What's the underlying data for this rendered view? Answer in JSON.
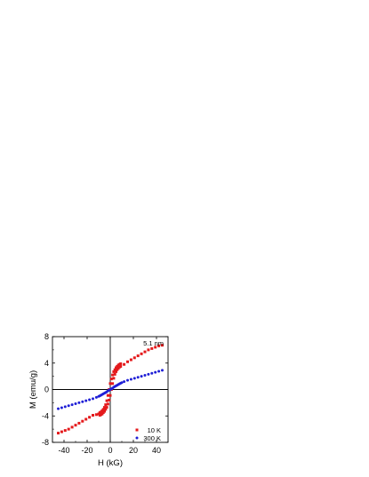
{
  "chart_data": {
    "type": "scatter",
    "xlabel": "H (kG)",
    "ylabel": "M (emu/g)",
    "xlim": [
      -50,
      50
    ],
    "ylim": [
      -8,
      8
    ],
    "xticks": [
      -40,
      -20,
      0,
      20,
      40
    ],
    "yticks": [
      -8,
      -4,
      0,
      4,
      8
    ],
    "xtick_labels": [
      "-40",
      "-20",
      "0",
      "20",
      "40"
    ],
    "ytick_labels": [
      "-8",
      "-4",
      "0",
      "4",
      "8"
    ],
    "annotation": "5.1 nm",
    "legend_position": "bottom-right",
    "zero_lines": true,
    "series": [
      {
        "name": "10 K",
        "color": "#e41a1c",
        "marker": "square",
        "points": [
          [
            -45,
            -6.6
          ],
          [
            -42,
            -6.4
          ],
          [
            -39,
            -6.2
          ],
          [
            -36,
            -6.0
          ],
          [
            -33,
            -5.7
          ],
          [
            -30,
            -5.4
          ],
          [
            -27,
            -5.1
          ],
          [
            -24,
            -4.8
          ],
          [
            -21,
            -4.5
          ],
          [
            -18,
            -4.2
          ],
          [
            -15,
            -3.9
          ],
          [
            -12,
            -3.8
          ],
          [
            -10,
            -3.7
          ],
          [
            -9,
            -3.5
          ],
          [
            -8,
            -3.4
          ],
          [
            -7,
            -3.2
          ],
          [
            -6,
            -3.0
          ],
          [
            -5,
            -2.7
          ],
          [
            -4,
            -2.3
          ],
          [
            -3,
            -1.7
          ],
          [
            -2,
            -0.9
          ],
          [
            -1,
            0.0
          ],
          [
            0,
            0.9
          ],
          [
            1,
            1.6
          ],
          [
            2,
            2.2
          ],
          [
            3,
            2.7
          ],
          [
            4,
            3.0
          ],
          [
            5,
            3.3
          ],
          [
            6,
            3.5
          ],
          [
            7,
            3.7
          ],
          [
            8,
            3.8
          ],
          [
            9,
            3.9
          ],
          [
            9,
            3.5
          ],
          [
            8,
            3.4
          ],
          [
            7,
            3.2
          ],
          [
            6,
            3.0
          ],
          [
            5,
            2.7
          ],
          [
            4,
            2.3
          ],
          [
            3,
            1.7
          ],
          [
            2,
            0.9
          ],
          [
            1,
            0.0
          ],
          [
            0,
            -0.9
          ],
          [
            -1,
            -1.6
          ],
          [
            -2,
            -2.2
          ],
          [
            -3,
            -2.7
          ],
          [
            -4,
            -3.0
          ],
          [
            -5,
            -3.3
          ],
          [
            -6,
            -3.5
          ],
          [
            -7,
            -3.7
          ],
          [
            -8,
            -3.8
          ],
          [
            -9,
            -3.9
          ],
          [
            12,
            3.8
          ],
          [
            15,
            4.2
          ],
          [
            18,
            4.5
          ],
          [
            21,
            4.8
          ],
          [
            24,
            5.1
          ],
          [
            27,
            5.4
          ],
          [
            30,
            5.7
          ],
          [
            33,
            6.0
          ],
          [
            36,
            6.2
          ],
          [
            39,
            6.4
          ],
          [
            42,
            6.6
          ],
          [
            45,
            6.7
          ]
        ]
      },
      {
        "name": "300 K",
        "color": "#1f1fd6",
        "marker": "circle",
        "points": [
          [
            -45,
            -2.9
          ],
          [
            -42,
            -2.75
          ],
          [
            -39,
            -2.6
          ],
          [
            -36,
            -2.45
          ],
          [
            -33,
            -2.3
          ],
          [
            -30,
            -2.15
          ],
          [
            -27,
            -2.0
          ],
          [
            -24,
            -1.85
          ],
          [
            -21,
            -1.7
          ],
          [
            -18,
            -1.55
          ],
          [
            -15,
            -1.4
          ],
          [
            -12,
            -1.2
          ],
          [
            -10,
            -1.05
          ],
          [
            -9,
            -0.95
          ],
          [
            -8,
            -0.85
          ],
          [
            -7,
            -0.75
          ],
          [
            -6,
            -0.65
          ],
          [
            -5,
            -0.55
          ],
          [
            -4,
            -0.45
          ],
          [
            -3,
            -0.35
          ],
          [
            -2,
            -0.2
          ],
          [
            -1,
            -0.1
          ],
          [
            0,
            0.0
          ],
          [
            1,
            0.1
          ],
          [
            2,
            0.2
          ],
          [
            3,
            0.35
          ],
          [
            4,
            0.45
          ],
          [
            5,
            0.55
          ],
          [
            6,
            0.65
          ],
          [
            7,
            0.75
          ],
          [
            8,
            0.85
          ],
          [
            9,
            0.95
          ],
          [
            10,
            1.05
          ],
          [
            12,
            1.2
          ],
          [
            15,
            1.4
          ],
          [
            18,
            1.55
          ],
          [
            21,
            1.7
          ],
          [
            24,
            1.85
          ],
          [
            27,
            2.0
          ],
          [
            30,
            2.15
          ],
          [
            33,
            2.3
          ],
          [
            36,
            2.45
          ],
          [
            39,
            2.6
          ],
          [
            42,
            2.75
          ],
          [
            45,
            2.9
          ]
        ]
      }
    ]
  }
}
